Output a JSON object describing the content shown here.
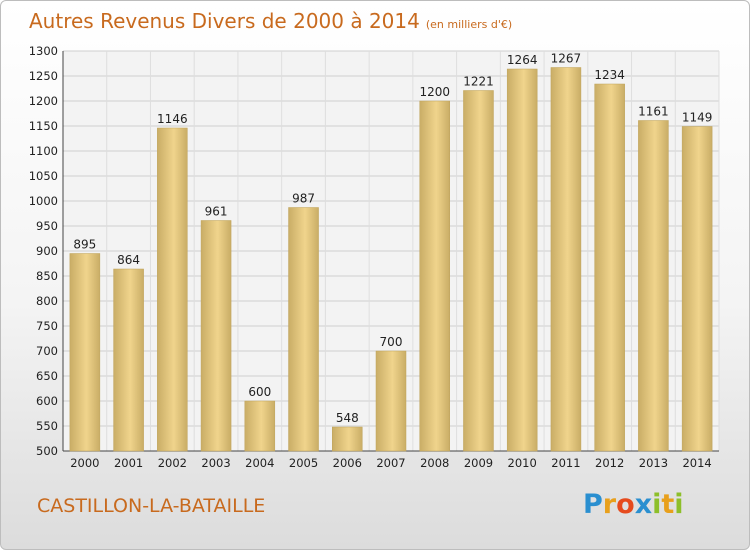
{
  "header": {
    "title": "Autres Revenus Divers de 2000 à 2014",
    "unit": "(en milliers d'€)"
  },
  "footer": {
    "commune": "CASTILLON-LA-BATAILLE",
    "logo_letters": [
      "P",
      "r",
      "o",
      "x",
      "i",
      "t",
      "i"
    ],
    "logo_colors": [
      "#2a8fd0",
      "#e8a01c",
      "#e64b1e",
      "#2a8fd0",
      "#8dbf2a",
      "#e8a01c",
      "#8dbf2a"
    ]
  },
  "chart_data": {
    "type": "bar",
    "categories": [
      "2000",
      "2001",
      "2002",
      "2003",
      "2004",
      "2005",
      "2006",
      "2007",
      "2008",
      "2009",
      "2010",
      "2011",
      "2012",
      "2013",
      "2014"
    ],
    "values": [
      895,
      864,
      1146,
      961,
      600,
      987,
      548,
      700,
      1200,
      1221,
      1264,
      1267,
      1234,
      1161,
      1149
    ],
    "value_labels": [
      "895",
      "864",
      "1146",
      "961",
      "600",
      "987",
      "548",
      "700",
      "1200",
      "1221",
      "1264",
      "1267",
      "1234",
      "1161",
      "1149"
    ],
    "title": "Autres Revenus Divers de 2000 à 2014",
    "xlabel": "",
    "ylabel": "",
    "ylim": [
      500,
      1300
    ],
    "yticks": [
      500,
      550,
      600,
      650,
      700,
      750,
      800,
      850,
      900,
      950,
      1000,
      1050,
      1100,
      1150,
      1200,
      1250,
      1300
    ],
    "ytick_labels": [
      "500",
      "550",
      "600",
      "650",
      "700",
      "750",
      "800",
      "850",
      "900",
      "950",
      "1000",
      "1050",
      "1100",
      "1150",
      "1200",
      "1250",
      "1300"
    ],
    "grid": true,
    "bar_color": "#f0d48c",
    "bar_shade_color": "#c9ad66"
  }
}
